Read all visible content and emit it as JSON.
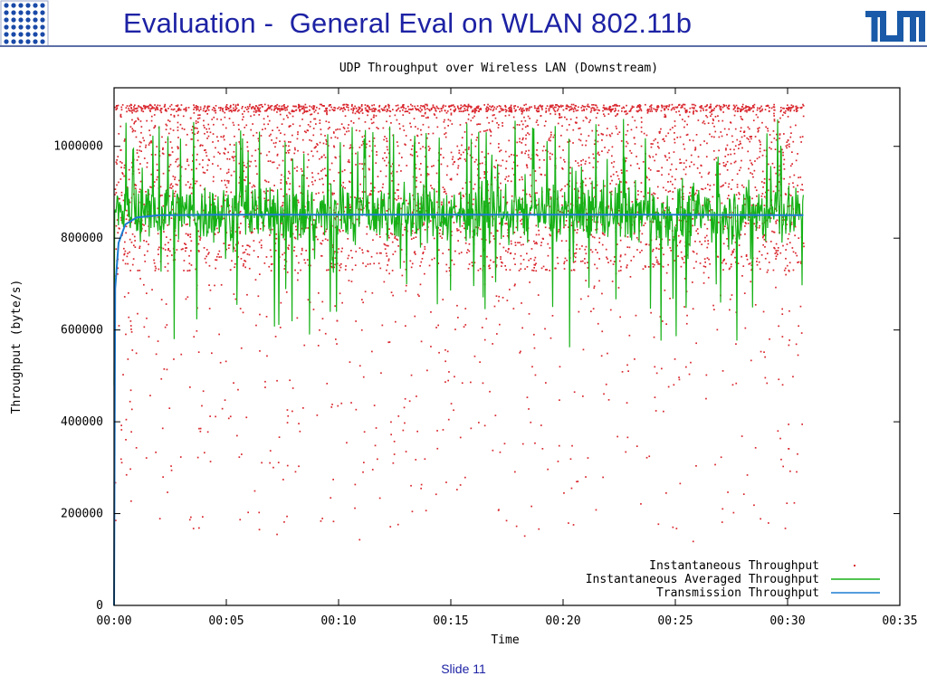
{
  "slide": {
    "title": "Evaluation -  General Eval on WLAN 802.11b",
    "footer": "Slide 11",
    "title_color": "#1d22a4"
  },
  "logos": {
    "left_icon": "dot-grid-logo-icon",
    "right_icon": "tum-logo-icon",
    "right_text": "TUM"
  },
  "chart_data": {
    "type": "scatter",
    "title": "UDP Throughput over Wireless LAN (Downstream)",
    "xlabel": "Time",
    "ylabel": "Throughput (byte/s)",
    "xlim": [
      0,
      35
    ],
    "ylim": [
      0,
      1100000
    ],
    "x_unit": "minutes",
    "x_ticks": [
      "00:00",
      "00:05",
      "00:10",
      "00:15",
      "00:20",
      "00:25",
      "00:30",
      "00:35"
    ],
    "y_ticks": [
      "0",
      "200000",
      "400000",
      "600000",
      "800000",
      "1000000"
    ],
    "grid": false,
    "legend_position": "bottom-right",
    "series": [
      {
        "name": "Instantaneous Throughput",
        "style": "points",
        "color": "#d9262d",
        "x_range": [
          0,
          30.7
        ],
        "dense_band": [
          730000,
          1090000
        ],
        "top_cluster": 1085000,
        "sparse_range": [
          140000,
          730000
        ]
      },
      {
        "name": "Instantaneous Averaged Throughput",
        "style": "line",
        "color": "#16b116",
        "x_range": [
          0,
          30.7
        ],
        "center": 855000,
        "typical_range": [
          780000,
          930000
        ],
        "spike_max": 1060000,
        "dip_min": 560000,
        "start_value": 480000
      },
      {
        "name": "Transmission Throughput",
        "style": "line",
        "color": "#1b7bd1",
        "x": [
          0,
          0.05,
          0.2,
          0.5,
          1,
          2,
          5,
          10,
          15,
          20,
          25,
          30.7
        ],
        "y": [
          0,
          690000,
          790000,
          830000,
          845000,
          850000,
          851000,
          851000,
          851000,
          851000,
          851000,
          850000
        ]
      }
    ]
  }
}
